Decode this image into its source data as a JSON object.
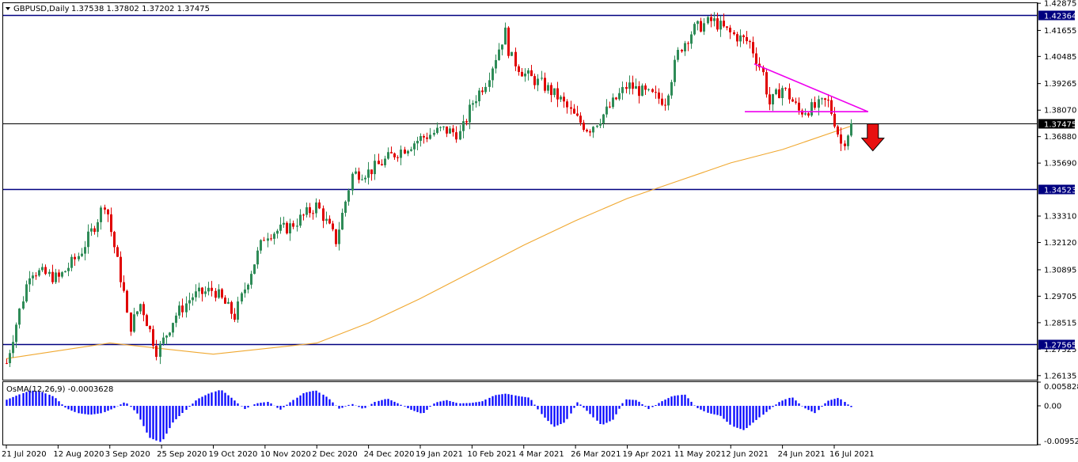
{
  "header": {
    "symbol": "GBPUSD,Daily",
    "ohlc": "1.37538 1.37802 1.37202 1.37475"
  },
  "colors": {
    "bull": "#2e8b57",
    "bear": "#e00000",
    "ma": "#f0a830",
    "level": "#000080",
    "trend": "#ee00ee",
    "osma": "#0000ff",
    "arrow": "#e81010",
    "grid": "#000000"
  },
  "chart_data": [
    {
      "type": "candlestick",
      "title": "GBPUSD,Daily",
      "ylim": [
        1.2595,
        1.4288
      ],
      "y_ticks": [
        "1.42875",
        "1.41655",
        "1.40485",
        "1.39265",
        "1.38070",
        "1.36880",
        "1.35690",
        "1.33310",
        "1.32120",
        "1.30895",
        "1.29705",
        "1.28515",
        "1.27325",
        "1.26135"
      ],
      "x_ticks": [
        "21 Jul 2020",
        "12 Aug 2020",
        "3 Sep 2020",
        "25 Sep 2020",
        "19 Oct 2020",
        "10 Nov 2020",
        "2 Dec 2020",
        "24 Dec 2020",
        "19 Jan 2021",
        "10 Feb 2021",
        "4 Mar 2021",
        "26 Mar 2021",
        "19 Apr 2021",
        "11 May 2021",
        "2 Jun 2021",
        "24 Jun 2021",
        "16 Jul 2021"
      ],
      "horizontal_levels": [
        {
          "label": "1.42364",
          "value": 1.42364,
          "color": "#000080"
        },
        {
          "label": "1.37475",
          "value": 1.37475,
          "color": "#000000"
        },
        {
          "label": "1.34523",
          "value": 1.34523,
          "color": "#000080"
        },
        {
          "label": "1.27565",
          "value": 1.27565,
          "color": "#000080"
        }
      ],
      "close_path": [
        [
          "21 Jul 2020",
          1.267
        ],
        [
          "24 Jul 2020",
          1.28
        ],
        [
          "31 Jul 2020",
          1.309
        ],
        [
          "12 Aug 2020",
          1.305
        ],
        [
          "21 Aug 2020",
          1.316
        ],
        [
          "28 Aug 2020",
          1.33
        ],
        [
          "1 Sep 2020",
          1.34
        ],
        [
          "3 Sep 2020",
          1.328
        ],
        [
          "9 Sep 2020",
          1.298
        ],
        [
          "11 Sep 2020",
          1.282
        ],
        [
          "16 Sep 2020",
          1.294
        ],
        [
          "23 Sep 2020",
          1.272
        ],
        [
          "25 Sep 2020",
          1.276
        ],
        [
          "1 Oct 2020",
          1.288
        ],
        [
          "9 Oct 2020",
          1.297
        ],
        [
          "19 Oct 2020",
          1.3
        ],
        [
          "28 Oct 2020",
          1.288
        ],
        [
          "3 Nov 2020",
          1.306
        ],
        [
          "10 Nov 2020",
          1.325
        ],
        [
          "20 Nov 2020",
          1.328
        ],
        [
          "2 Dec 2020",
          1.338
        ],
        [
          "10 Dec 2020",
          1.322
        ],
        [
          "17 Dec 2020",
          1.352
        ],
        [
          "24 Dec 2020",
          1.353
        ],
        [
          "4 Jan 2021",
          1.36
        ],
        [
          "19 Jan 2021",
          1.368
        ],
        [
          "28 Jan 2021",
          1.372
        ],
        [
          "5 Feb 2021",
          1.37
        ],
        [
          "10 Feb 2021",
          1.384
        ],
        [
          "16 Feb 2021",
          1.394
        ],
        [
          "24 Feb 2021",
          1.416
        ],
        [
          "26 Feb 2021",
          1.405
        ],
        [
          "4 Mar 2021",
          1.397
        ],
        [
          "12 Mar 2021",
          1.392
        ],
        [
          "19 Mar 2021",
          1.386
        ],
        [
          "26 Mar 2021",
          1.377
        ],
        [
          "1 Apr 2021",
          1.372
        ],
        [
          "9 Apr 2021",
          1.38
        ],
        [
          "19 Apr 2021",
          1.392
        ],
        [
          "27 Apr 2021",
          1.388
        ],
        [
          "5 May 2021",
          1.385
        ],
        [
          "11 May 2021",
          1.408
        ],
        [
          "17 May 2021",
          1.417
        ],
        [
          "25 May 2021",
          1.421
        ],
        [
          "2 Jun 2021",
          1.415
        ],
        [
          "10 Jun 2021",
          1.411
        ],
        [
          "16 Jun 2021",
          1.396
        ],
        [
          "18 Jun 2021",
          1.383
        ],
        [
          "24 Jun 2021",
          1.391
        ],
        [
          "1 Jul 2021",
          1.38
        ],
        [
          "8 Jul 2021",
          1.382
        ],
        [
          "13 Jul 2021",
          1.385
        ],
        [
          "16 Jul 2021",
          1.376
        ],
        [
          "19 Jul 2021",
          1.365
        ],
        [
          "21 Jul 2021",
          1.369
        ],
        [
          "23 Jul 2021",
          1.3748
        ]
      ],
      "moving_average": [
        [
          "21 Jul 2020",
          1.269
        ],
        [
          "3 Sep 2020",
          1.276
        ],
        [
          "19 Oct 2020",
          1.271
        ],
        [
          "2 Dec 2020",
          1.276
        ],
        [
          "24 Dec 2020",
          1.285
        ],
        [
          "19 Jan 2021",
          1.296
        ],
        [
          "10 Feb 2021",
          1.308
        ],
        [
          "4 Mar 2021",
          1.32
        ],
        [
          "26 Mar 2021",
          1.331
        ],
        [
          "19 Apr 2021",
          1.341
        ],
        [
          "11 May 2021",
          1.349
        ],
        [
          "2 Jun 2021",
          1.357
        ],
        [
          "24 Jun 2021",
          1.363
        ],
        [
          "23 Jul 2021",
          1.3735
        ]
      ]
    },
    {
      "type": "bar",
      "title": "OsMA(12,26,9) -0.0003628",
      "ylim": [
        -0.009527,
        0.005828
      ],
      "y_ticks": [
        "0.005828",
        "0.00",
        "-0.009527"
      ],
      "x_range": [
        "21 Jul 2020",
        "23 Jul 2021"
      ],
      "values": [
        0.0015,
        0.0027,
        0.0038,
        0.0034,
        0.0022,
        -0.0006,
        -0.0018,
        -0.0022,
        -0.0018,
        -0.0006,
        0.001,
        -0.002,
        -0.0078,
        -0.009,
        -0.004,
        -0.0012,
        0.0016,
        0.003,
        0.004,
        0.0018,
        -0.0008,
        0.0006,
        0.001,
        -0.001,
        0.0012,
        0.0032,
        0.0038,
        0.002,
        -0.0008,
        0.0005,
        -0.0008,
        0.001,
        0.0018,
        0.0005,
        -0.001,
        -0.002,
        0.0008,
        0.0014,
        0.0006,
        0.0007,
        0.0011,
        0.0026,
        0.003,
        0.0024,
        0.002,
        -0.0022,
        -0.0052,
        -0.004,
        0.001,
        -0.0018,
        -0.0048,
        -0.0034,
        0.0016,
        0.0014,
        -0.0008,
        0.001,
        0.0024,
        0.0028,
        -0.0004,
        -0.0018,
        -0.0024,
        -0.005,
        -0.006,
        -0.0036,
        -0.0012,
        0.001,
        0.0022,
        -0.0004,
        -0.0018,
        0.0012,
        0.002,
        -0.0003
      ]
    }
  ]
}
